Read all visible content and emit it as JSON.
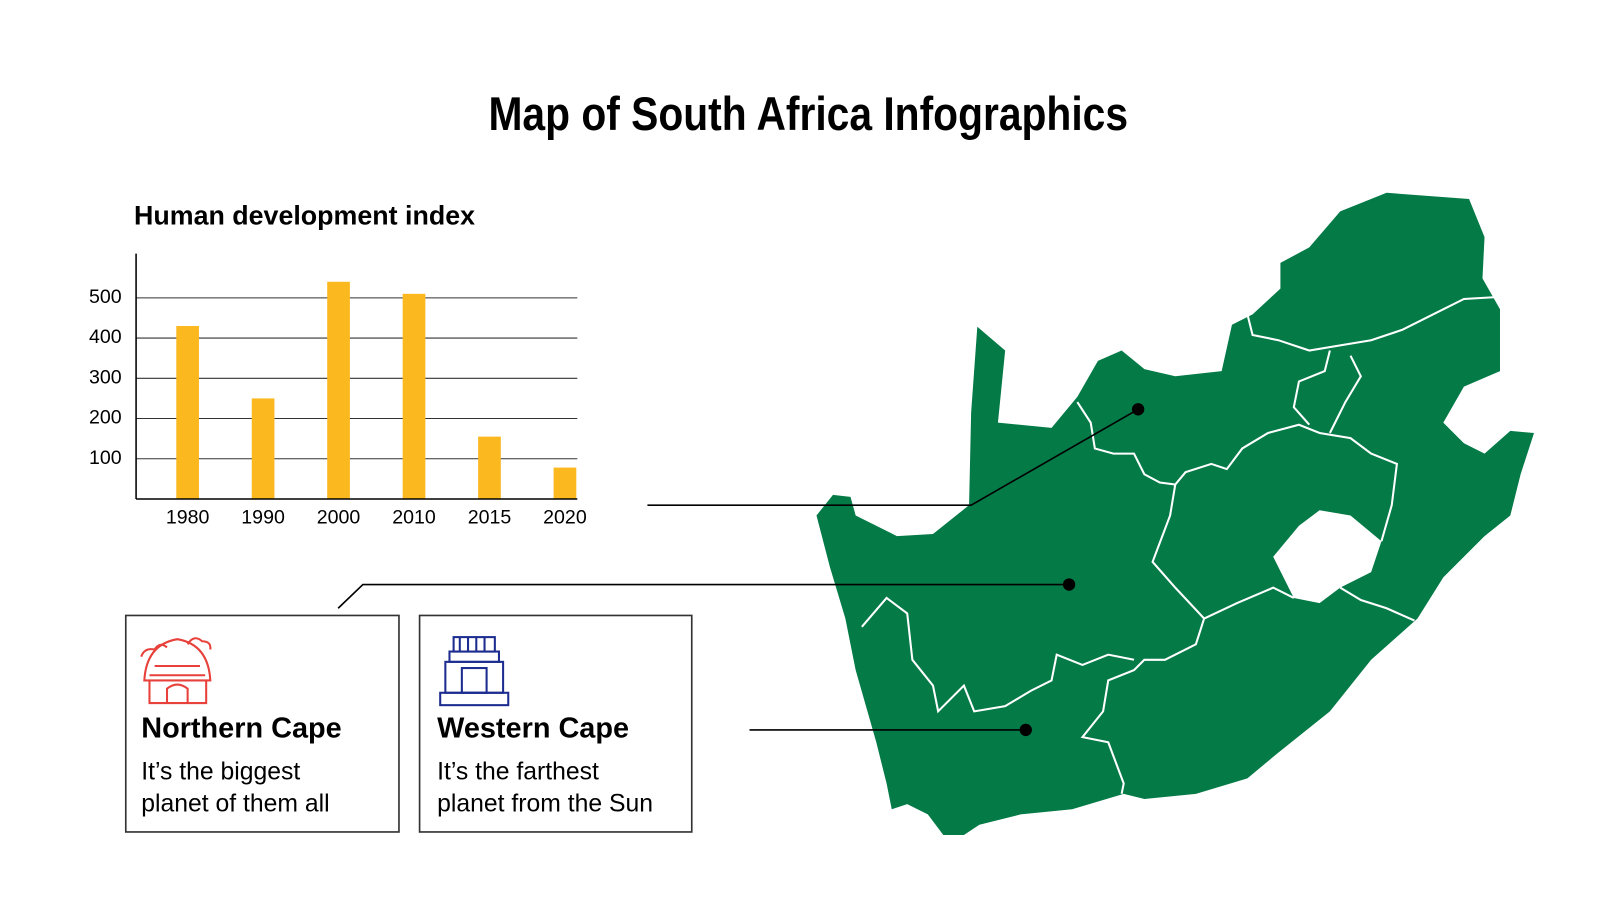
{
  "title": "Map of South Africa Infographics",
  "chart_data": {
    "type": "bar",
    "title": "Human development index",
    "categories": [
      "1980",
      "1990",
      "2000",
      "2010",
      "2015",
      "2020"
    ],
    "values": [
      430,
      250,
      540,
      510,
      155,
      78
    ],
    "color": "#fbb81f",
    "ylim": [
      0,
      610
    ],
    "yticks": [
      100,
      200,
      300,
      400,
      500
    ],
    "grid": true
  },
  "cards": [
    {
      "title": "Northern Cape",
      "lines": [
        "It’s the biggest",
        "planet of them all"
      ]
    },
    {
      "title": "Western Cape",
      "lines": [
        "It’s the farthest",
        "planet from the Sun"
      ]
    }
  ]
}
